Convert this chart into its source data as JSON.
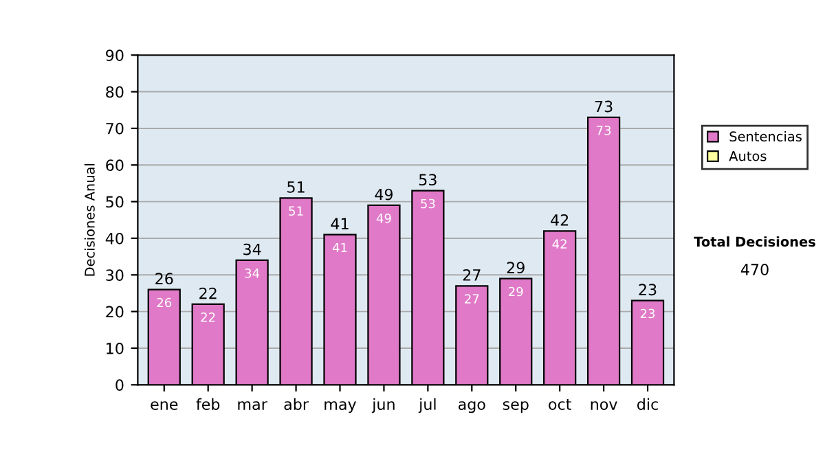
{
  "chart_data": {
    "type": "bar",
    "stacked": true,
    "ylabel": "Decisiones Anual",
    "categories": [
      "ene",
      "feb",
      "mar",
      "abr",
      "may",
      "jun",
      "jul",
      "ago",
      "sep",
      "oct",
      "nov",
      "dic"
    ],
    "series": [
      {
        "name": "Sentencias",
        "color": "#e07ac8",
        "values": [
          26,
          22,
          34,
          51,
          41,
          49,
          53,
          27,
          29,
          42,
          73,
          23
        ]
      },
      {
        "name": "Autos",
        "color": "#ffffa0",
        "values": [
          null,
          null,
          null,
          null,
          null,
          null,
          null,
          null,
          null,
          null,
          null,
          null
        ]
      }
    ],
    "data_labels": true,
    "totals": [
      "26",
      "22",
      "34",
      "51",
      "41",
      "49",
      "53",
      "27",
      "29",
      "42",
      "73",
      "23"
    ],
    "ylim": [
      0,
      90
    ],
    "yticks": [
      0,
      10,
      20,
      30,
      40,
      50,
      60,
      70,
      80,
      90
    ],
    "grid": "y",
    "legend": "right",
    "annotations": [
      "Total Decisiones",
      "470"
    ]
  }
}
